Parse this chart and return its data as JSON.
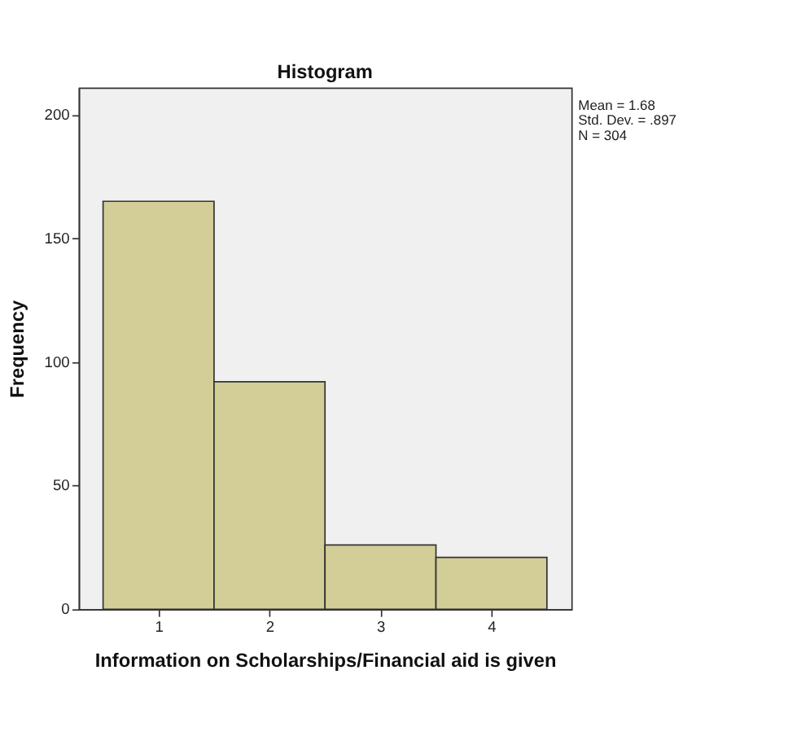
{
  "chart_data": {
    "type": "histogram",
    "title": "Histogram",
    "xlabel": "Information on Scholarships/Financial aid is given",
    "ylabel": "Frequency",
    "bins": [
      0.5,
      1.5,
      2.5,
      3.5,
      4.5
    ],
    "values": [
      165,
      92,
      26,
      21
    ],
    "color": "#d3ce97",
    "xlim": [
      0.28,
      4.72
    ],
    "xticks": [
      1,
      2,
      3,
      4
    ],
    "ylim": [
      0,
      211
    ],
    "yticks": [
      0,
      50,
      100,
      150,
      200
    ],
    "grid": false,
    "annotations": [
      "Mean = 1.68",
      "Std. Dev. = .897",
      "N = 304"
    ]
  }
}
